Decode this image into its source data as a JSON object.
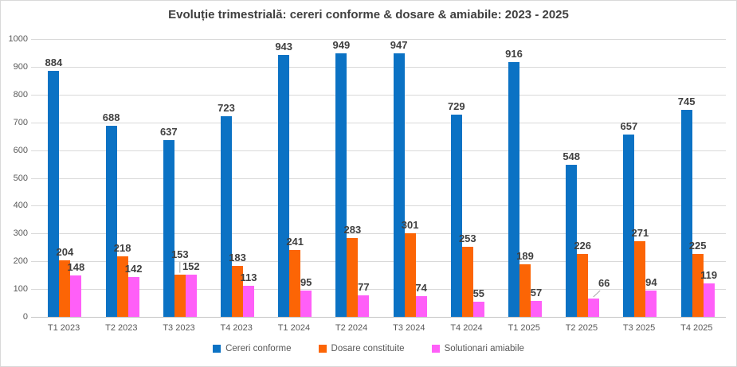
{
  "chart_data": {
    "type": "bar",
    "title": "Evoluție trimestrială: cereri conforme & dosare & amiabile: 2023 - 2025",
    "categories": [
      "T1 2023",
      "T2 2023",
      "T3 2023",
      "T4 2023",
      "T1 2024",
      "T2 2024",
      "T3 2024",
      "T4 2024",
      "T1 2025",
      "T2 2025",
      "T3 2025",
      "T4 2025"
    ],
    "series": [
      {
        "name": "Cereri conforme",
        "color": "#0b72c4",
        "values": [
          884,
          688,
          637,
          723,
          943,
          949,
          947,
          729,
          916,
          548,
          657,
          745
        ]
      },
      {
        "name": "Dosare constituite",
        "color": "#fc6505",
        "values": [
          204,
          218,
          153,
          183,
          241,
          283,
          301,
          253,
          189,
          226,
          271,
          225
        ]
      },
      {
        "name": "Solutionari amiabile",
        "color": "#ff5ff8",
        "values": [
          148,
          142,
          152,
          113,
          95,
          77,
          74,
          55,
          57,
          66,
          94,
          119
        ]
      }
    ],
    "ylim": [
      0,
      1000
    ],
    "yticks": [
      0,
      100,
      200,
      300,
      400,
      500,
      600,
      700,
      800,
      900,
      1000
    ],
    "grid": true,
    "legend_position": "bottom",
    "colors": {
      "gridline": "#d9d9d9",
      "axis_line": "#c3c3c3",
      "tick_text": "#595959",
      "data_label_text": "#404040",
      "title_text": "#404040",
      "leader_line": "#a6a6a6"
    }
  }
}
